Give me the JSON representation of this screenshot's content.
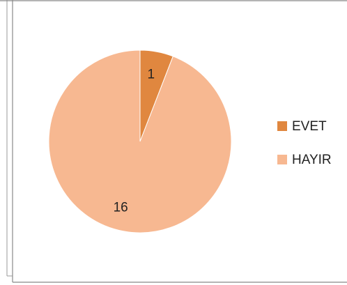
{
  "chart_data": {
    "type": "pie",
    "categories": [
      "EVET",
      "HAYIR"
    ],
    "values": [
      1,
      16
    ],
    "colors": [
      "#E0873F",
      "#F7B891"
    ],
    "legend": "right"
  }
}
